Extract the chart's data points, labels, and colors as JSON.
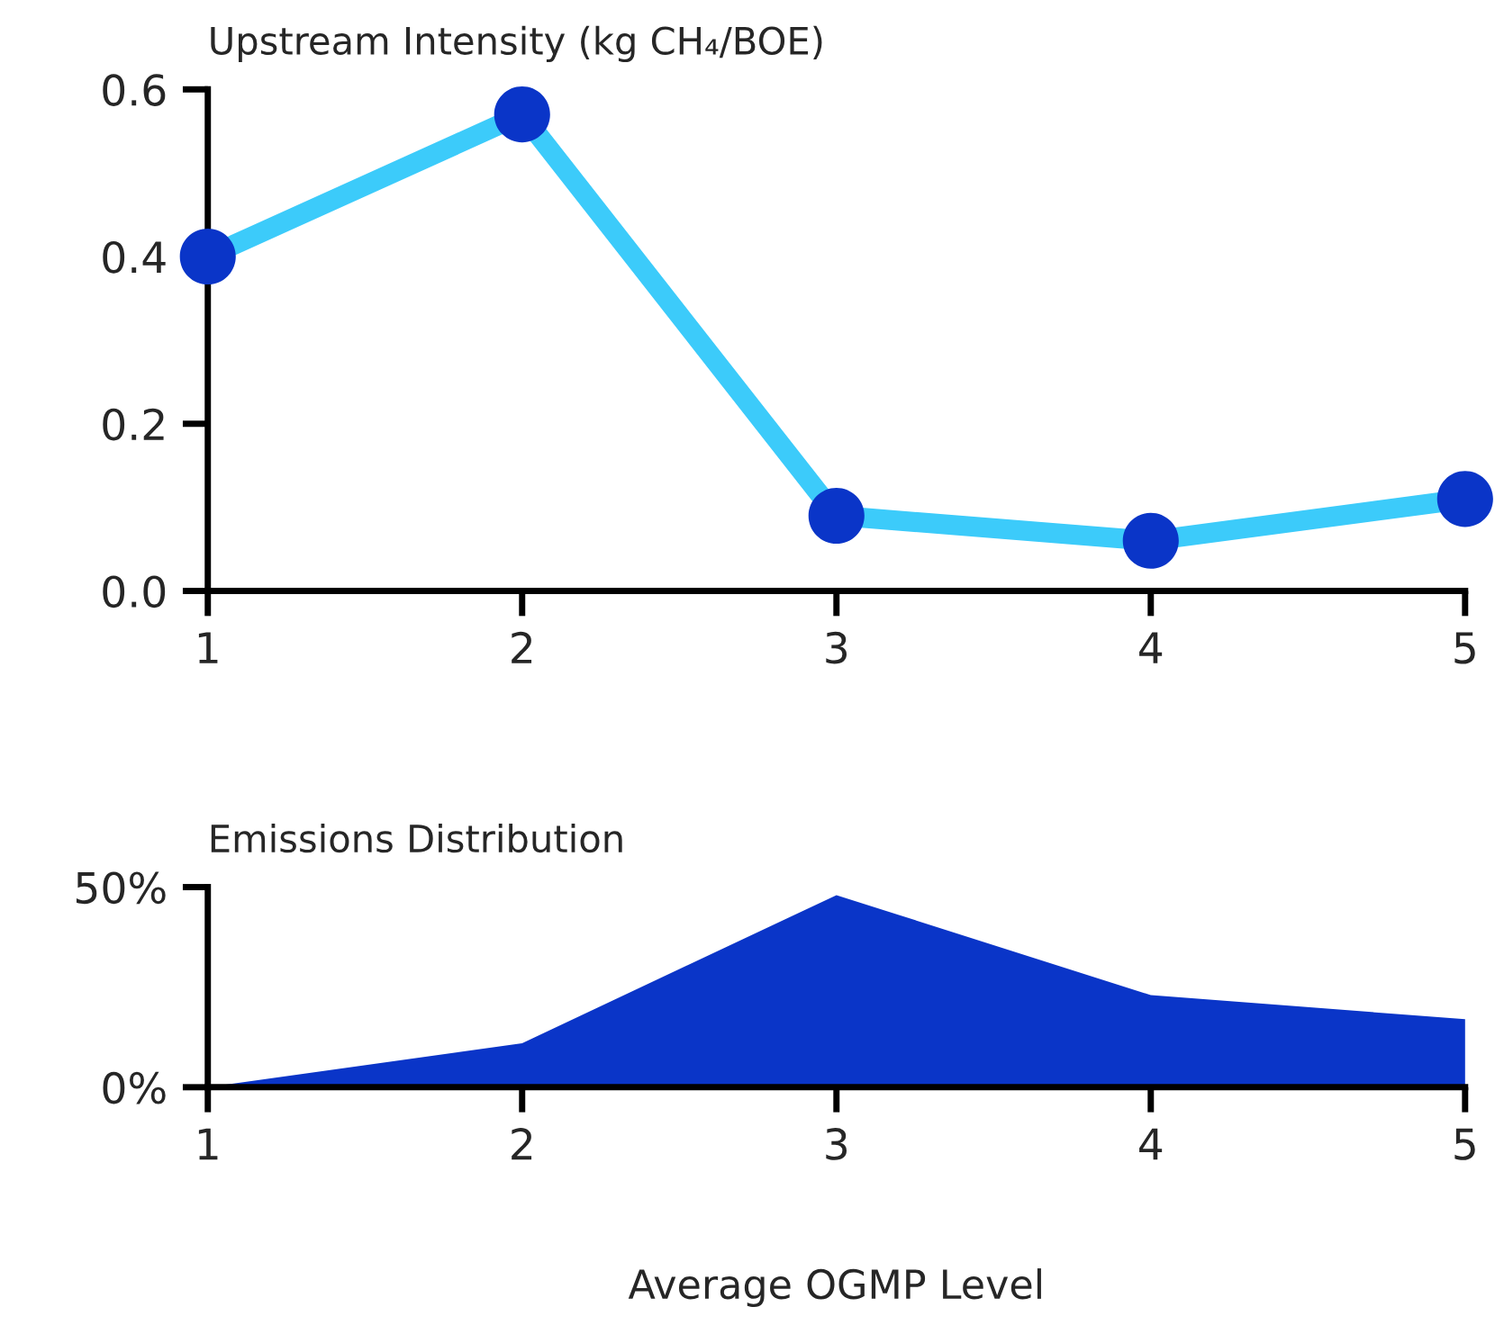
{
  "chart_data": [
    {
      "type": "line",
      "title": "Upstream Intensity (kg CH₄/BOE)",
      "x": [
        1,
        2,
        3,
        4,
        5
      ],
      "series": [
        {
          "color": "#3ccbfa",
          "colors": [
            "#0a35c8",
            "#0a35c8",
            "#0a35c8",
            "#0a35c8",
            "#0a35c8"
          ],
          "values": [
            0.4,
            0.57,
            0.09,
            0.06,
            0.11
          ]
        }
      ],
      "marker": "circle",
      "line_style": "solid",
      "grid": false,
      "legend": false,
      "xlim": [
        1,
        5
      ],
      "xticks": [
        1,
        2,
        3,
        4,
        5
      ],
      "ylim": [
        0,
        0.6
      ],
      "yticks": [
        {
          "value": 0,
          "label": "0.0"
        },
        {
          "value": 0.2,
          "label": "0.2"
        },
        {
          "value": 0.4,
          "label": "0.4"
        },
        {
          "value": 0.6,
          "label": "0.6"
        }
      ]
    },
    {
      "type": "area",
      "title": "Emissions Distribution",
      "xlabel": "Average OGMP Level",
      "x": [
        1,
        2,
        3,
        4,
        5
      ],
      "series": [
        {
          "color": "#0a35c8",
          "values": [
            0,
            11,
            48,
            23,
            17
          ]
        }
      ],
      "grid": false,
      "legend": false,
      "xlim": [
        1,
        5
      ],
      "xticks": [
        1,
        2,
        3,
        4,
        5
      ],
      "ylim": [
        0,
        50
      ],
      "yticks": [
        {
          "value": 0,
          "label": "0%"
        },
        {
          "value": 50,
          "label": "50%"
        }
      ]
    }
  ]
}
